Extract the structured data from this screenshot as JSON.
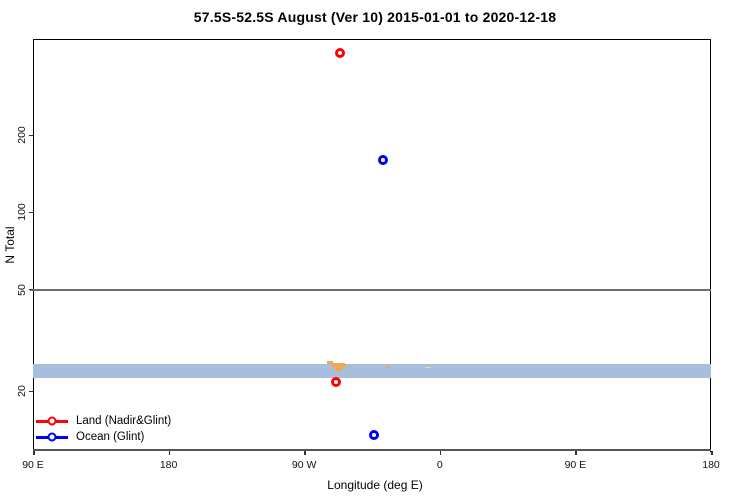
{
  "title": "57.5S-52.5S August (Ver 10)   2015-01-01 to 2020-12-18",
  "chart_data": {
    "type": "scatter",
    "title": "57.5S-52.5S August (Ver 10)   2015-01-01 to 2020-12-18",
    "xlabel": "Longitude (deg E)",
    "ylabel": "N Total",
    "x_axis": {
      "lim": [
        90,
        540
      ],
      "ticks": [
        {
          "value": 90,
          "label": "90 E"
        },
        {
          "value": 180,
          "label": "180"
        },
        {
          "value": 270,
          "label": "90 W"
        },
        {
          "value": 360,
          "label": "0"
        },
        {
          "value": 450,
          "label": "90 E"
        },
        {
          "value": 540,
          "label": "180"
        }
      ]
    },
    "y_axis": {
      "scale": "log",
      "lim": [
        11.6,
        476
      ],
      "ticks": [
        {
          "value": 20,
          "label": "20"
        },
        {
          "value": 50,
          "label": "50"
        },
        {
          "value": 100,
          "label": "100"
        },
        {
          "value": 200,
          "label": "200"
        }
      ]
    },
    "grid": "off",
    "reference_line": {
      "y": 50,
      "color": "#6b6b6b"
    },
    "map_band": {
      "description": "latitude strip map 57.5S-52.5S drawn across plot",
      "y_top_value": 25.6,
      "y_bottom_value": 22.6,
      "ocean_color": "#a8bedd",
      "land_color": "#f0a94e",
      "land_faint_color": "#ffd98f",
      "land_patches": [
        {
          "lon_start": 285.1,
          "lon_end": 289.1,
          "row_offset": -3,
          "height": 3,
          "shade": "normal"
        },
        {
          "lon_start": 288.5,
          "lon_end": 297.1,
          "row_offset": -1,
          "height": 4,
          "shade": "normal"
        },
        {
          "lon_start": 290.5,
          "lon_end": 295.1,
          "row_offset": 3,
          "height": 4,
          "shade": "normal"
        },
        {
          "lon_start": 296.4,
          "lon_end": 299.1,
          "row_offset": 0,
          "height": 2,
          "shade": "normal"
        },
        {
          "lon_start": 325.0,
          "lon_end": 327.0,
          "row_offset": 2,
          "height": 2,
          "shade": "normal"
        },
        {
          "lon_start": 350.2,
          "lon_end": 354.2,
          "row_offset": 3,
          "height": 1,
          "shade": "faint"
        }
      ]
    },
    "series": [
      {
        "name": "Land (Nadir&Glint)",
        "color": "#ff0000",
        "marker": "open-circle",
        "points": [
          {
            "x": 294,
            "y": 420
          },
          {
            "x": 291,
            "y": 21.8
          }
        ]
      },
      {
        "name": "Ocean (Glint)",
        "color": "#0000ff",
        "marker": "open-circle",
        "points": [
          {
            "x": 322,
            "y": 160
          },
          {
            "x": 316,
            "y": 13.5
          }
        ]
      }
    ],
    "legend": {
      "position": "bottom-left"
    }
  }
}
